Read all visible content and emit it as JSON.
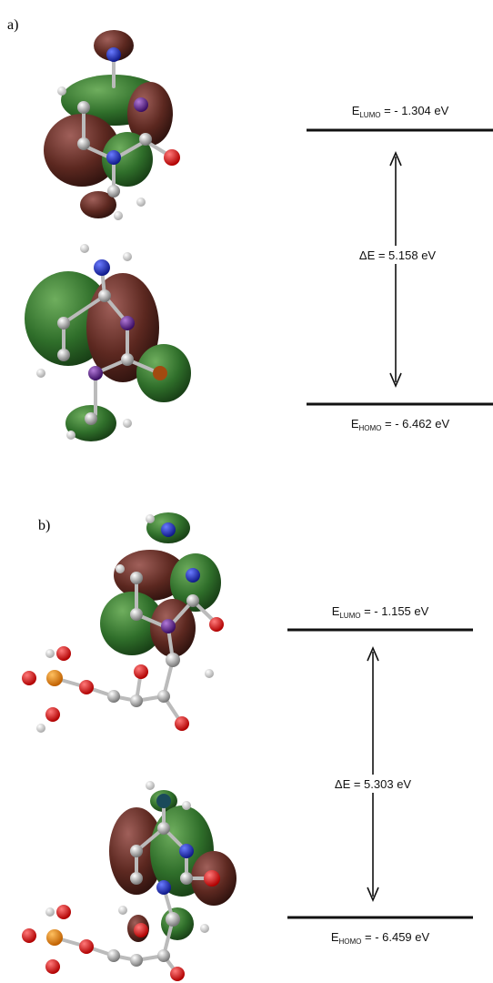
{
  "panels": [
    {
      "label": "a)",
      "lumo": {
        "symbol": "E",
        "subscript": "LUMO",
        "value": " = - 1.304 eV"
      },
      "gap": "ΔE = 5.158 eV",
      "homo": {
        "symbol": "E",
        "subscript": "HOMO",
        "value": " = - 6.462 eV"
      }
    },
    {
      "label": "b)",
      "lumo": {
        "symbol": "E",
        "subscript": "LUMO",
        "value": " = - 1.155 eV"
      },
      "gap": "ΔE = 5.303 eV",
      "homo": {
        "symbol": "E",
        "subscript": "HOMO",
        "value": " = - 6.459 eV"
      }
    }
  ]
}
